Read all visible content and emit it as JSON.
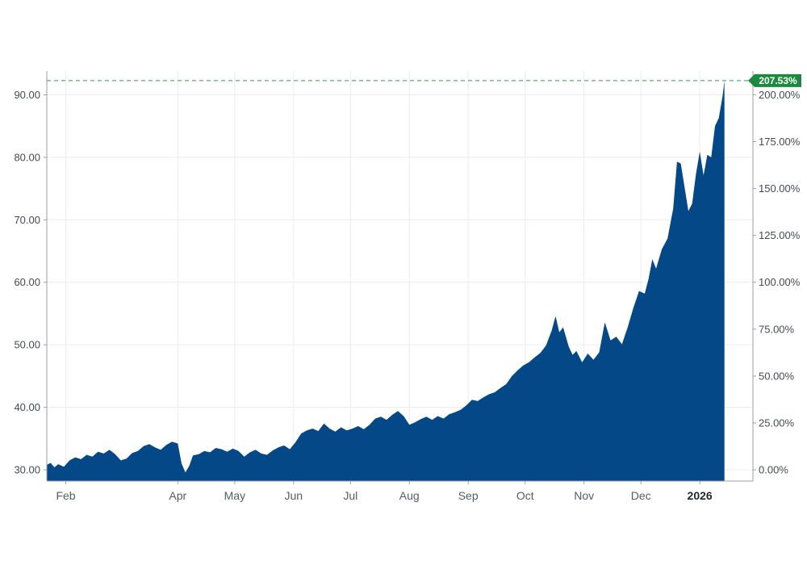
{
  "chart_data": {
    "type": "area",
    "title": "",
    "xlabel": "",
    "ylabel": "",
    "x_ticks": [
      {
        "label": "Feb",
        "date": "2025-02-01",
        "bold": false
      },
      {
        "label": "Apr",
        "date": "2025-04-01",
        "bold": false
      },
      {
        "label": "May",
        "date": "2025-05-01",
        "bold": false
      },
      {
        "label": "Jun",
        "date": "2025-06-01",
        "bold": false
      },
      {
        "label": "Jul",
        "date": "2025-07-01",
        "bold": false
      },
      {
        "label": "Aug",
        "date": "2025-08-01",
        "bold": false
      },
      {
        "label": "Sep",
        "date": "2025-09-01",
        "bold": false
      },
      {
        "label": "Oct",
        "date": "2025-10-01",
        "bold": false
      },
      {
        "label": "Nov",
        "date": "2025-11-01",
        "bold": false
      },
      {
        "label": "Dec",
        "date": "2025-12-01",
        "bold": false
      },
      {
        "label": "2026",
        "date": "2026-01-01",
        "bold": true
      }
    ],
    "xlim": [
      "2025-01-22",
      "2026-01-29"
    ],
    "left_axis": {
      "ticks": [
        "30.00",
        "40.00",
        "50.00",
        "60.00",
        "70.00",
        "80.00",
        "90.00"
      ],
      "ylim": [
        28.2,
        93.8
      ]
    },
    "right_axis": {
      "ticks": [
        "0.00%",
        "25.00%",
        "50.00%",
        "75.00%",
        "100.00%",
        "125.00%",
        "150.00%",
        "175.00%",
        "200.00%"
      ],
      "baseline_price": 30.0
    },
    "grid": true,
    "last_value_label": "207.53%",
    "last_value_price": 92.26,
    "colors": {
      "area": "#044887",
      "badge": "#1b8a3f",
      "reference_line": "#2e9a52",
      "grid": "#ececec"
    },
    "series": [
      {
        "points": [
          [
            "2025-01-22",
            30.8
          ],
          [
            "2025-01-24",
            31.1
          ],
          [
            "2025-01-26",
            30.4
          ],
          [
            "2025-01-28",
            30.9
          ],
          [
            "2025-01-31",
            30.5
          ],
          [
            "2025-02-03",
            31.5
          ],
          [
            "2025-02-06",
            32.0
          ],
          [
            "2025-02-09",
            31.7
          ],
          [
            "2025-02-12",
            32.4
          ],
          [
            "2025-02-15",
            32.1
          ],
          [
            "2025-02-18",
            32.9
          ],
          [
            "2025-02-21",
            32.6
          ],
          [
            "2025-02-24",
            33.2
          ],
          [
            "2025-02-27",
            32.5
          ],
          [
            "2025-03-02",
            31.5
          ],
          [
            "2025-03-05",
            31.8
          ],
          [
            "2025-03-08",
            32.7
          ],
          [
            "2025-03-11",
            33.0
          ],
          [
            "2025-03-14",
            33.8
          ],
          [
            "2025-03-17",
            34.1
          ],
          [
            "2025-03-20",
            33.6
          ],
          [
            "2025-03-23",
            33.2
          ],
          [
            "2025-03-26",
            34.0
          ],
          [
            "2025-03-29",
            34.5
          ],
          [
            "2025-04-01",
            34.2
          ],
          [
            "2025-04-03",
            31.0
          ],
          [
            "2025-04-05",
            29.6
          ],
          [
            "2025-04-07",
            30.6
          ],
          [
            "2025-04-09",
            32.3
          ],
          [
            "2025-04-12",
            32.5
          ],
          [
            "2025-04-15",
            33.0
          ],
          [
            "2025-04-18",
            32.8
          ],
          [
            "2025-04-21",
            33.5
          ],
          [
            "2025-04-24",
            33.3
          ],
          [
            "2025-04-27",
            32.9
          ],
          [
            "2025-04-30",
            33.4
          ],
          [
            "2025-05-03",
            33.0
          ],
          [
            "2025-05-06",
            32.1
          ],
          [
            "2025-05-09",
            32.8
          ],
          [
            "2025-05-12",
            33.2
          ],
          [
            "2025-05-15",
            32.6
          ],
          [
            "2025-05-18",
            32.4
          ],
          [
            "2025-05-21",
            33.1
          ],
          [
            "2025-05-24",
            33.6
          ],
          [
            "2025-05-27",
            33.9
          ],
          [
            "2025-05-30",
            33.3
          ],
          [
            "2025-06-02",
            34.4
          ],
          [
            "2025-06-05",
            35.8
          ],
          [
            "2025-06-08",
            36.3
          ],
          [
            "2025-06-11",
            36.6
          ],
          [
            "2025-06-14",
            36.2
          ],
          [
            "2025-06-17",
            37.4
          ],
          [
            "2025-06-20",
            36.6
          ],
          [
            "2025-06-23",
            36.1
          ],
          [
            "2025-06-26",
            36.8
          ],
          [
            "2025-06-29",
            36.3
          ],
          [
            "2025-07-02",
            36.6
          ],
          [
            "2025-07-05",
            37.0
          ],
          [
            "2025-07-08",
            36.5
          ],
          [
            "2025-07-11",
            37.2
          ],
          [
            "2025-07-14",
            38.2
          ],
          [
            "2025-07-17",
            38.5
          ],
          [
            "2025-07-20",
            38.0
          ],
          [
            "2025-07-23",
            38.8
          ],
          [
            "2025-07-26",
            39.4
          ],
          [
            "2025-07-29",
            38.6
          ],
          [
            "2025-08-01",
            37.2
          ],
          [
            "2025-08-04",
            37.6
          ],
          [
            "2025-08-07",
            38.1
          ],
          [
            "2025-08-10",
            38.5
          ],
          [
            "2025-08-13",
            38.0
          ],
          [
            "2025-08-16",
            38.6
          ],
          [
            "2025-08-19",
            38.2
          ],
          [
            "2025-08-22",
            38.9
          ],
          [
            "2025-08-25",
            39.2
          ],
          [
            "2025-08-28",
            39.6
          ],
          [
            "2025-08-31",
            40.3
          ],
          [
            "2025-09-03",
            41.2
          ],
          [
            "2025-09-06",
            41.0
          ],
          [
            "2025-09-09",
            41.6
          ],
          [
            "2025-09-12",
            42.1
          ],
          [
            "2025-09-15",
            42.4
          ],
          [
            "2025-09-18",
            43.1
          ],
          [
            "2025-09-21",
            43.7
          ],
          [
            "2025-09-24",
            45.0
          ],
          [
            "2025-09-27",
            45.9
          ],
          [
            "2025-09-30",
            46.7
          ],
          [
            "2025-10-03",
            47.2
          ],
          [
            "2025-10-06",
            48.0
          ],
          [
            "2025-10-09",
            48.7
          ],
          [
            "2025-10-12",
            49.9
          ],
          [
            "2025-10-15",
            52.3
          ],
          [
            "2025-10-17",
            54.6
          ],
          [
            "2025-10-19",
            52.0
          ],
          [
            "2025-10-21",
            52.8
          ],
          [
            "2025-10-24",
            49.7
          ],
          [
            "2025-10-26",
            48.4
          ],
          [
            "2025-10-28",
            49.0
          ],
          [
            "2025-10-31",
            47.2
          ],
          [
            "2025-11-03",
            48.6
          ],
          [
            "2025-11-06",
            47.6
          ],
          [
            "2025-11-09",
            48.8
          ],
          [
            "2025-11-12",
            53.6
          ],
          [
            "2025-11-15",
            50.7
          ],
          [
            "2025-11-18",
            51.3
          ],
          [
            "2025-11-21",
            50.1
          ],
          [
            "2025-11-24",
            52.8
          ],
          [
            "2025-11-27",
            55.9
          ],
          [
            "2025-11-30",
            58.6
          ],
          [
            "2025-12-03",
            58.2
          ],
          [
            "2025-12-05",
            60.5
          ],
          [
            "2025-12-07",
            63.7
          ],
          [
            "2025-12-09",
            62.2
          ],
          [
            "2025-12-12",
            65.3
          ],
          [
            "2025-12-15",
            67.0
          ],
          [
            "2025-12-18",
            71.8
          ],
          [
            "2025-12-20",
            79.3
          ],
          [
            "2025-12-22",
            79.0
          ],
          [
            "2025-12-24",
            75.2
          ],
          [
            "2025-12-26",
            71.4
          ],
          [
            "2025-12-28",
            72.6
          ],
          [
            "2025-12-30",
            77.3
          ],
          [
            "2026-01-01",
            80.9
          ],
          [
            "2026-01-03",
            77.1
          ],
          [
            "2026-01-05",
            80.4
          ],
          [
            "2026-01-07",
            80.0
          ],
          [
            "2026-01-09",
            85.0
          ],
          [
            "2026-01-11",
            86.3
          ],
          [
            "2026-01-13",
            89.8
          ],
          [
            "2026-01-14",
            92.26
          ]
        ]
      }
    ]
  }
}
